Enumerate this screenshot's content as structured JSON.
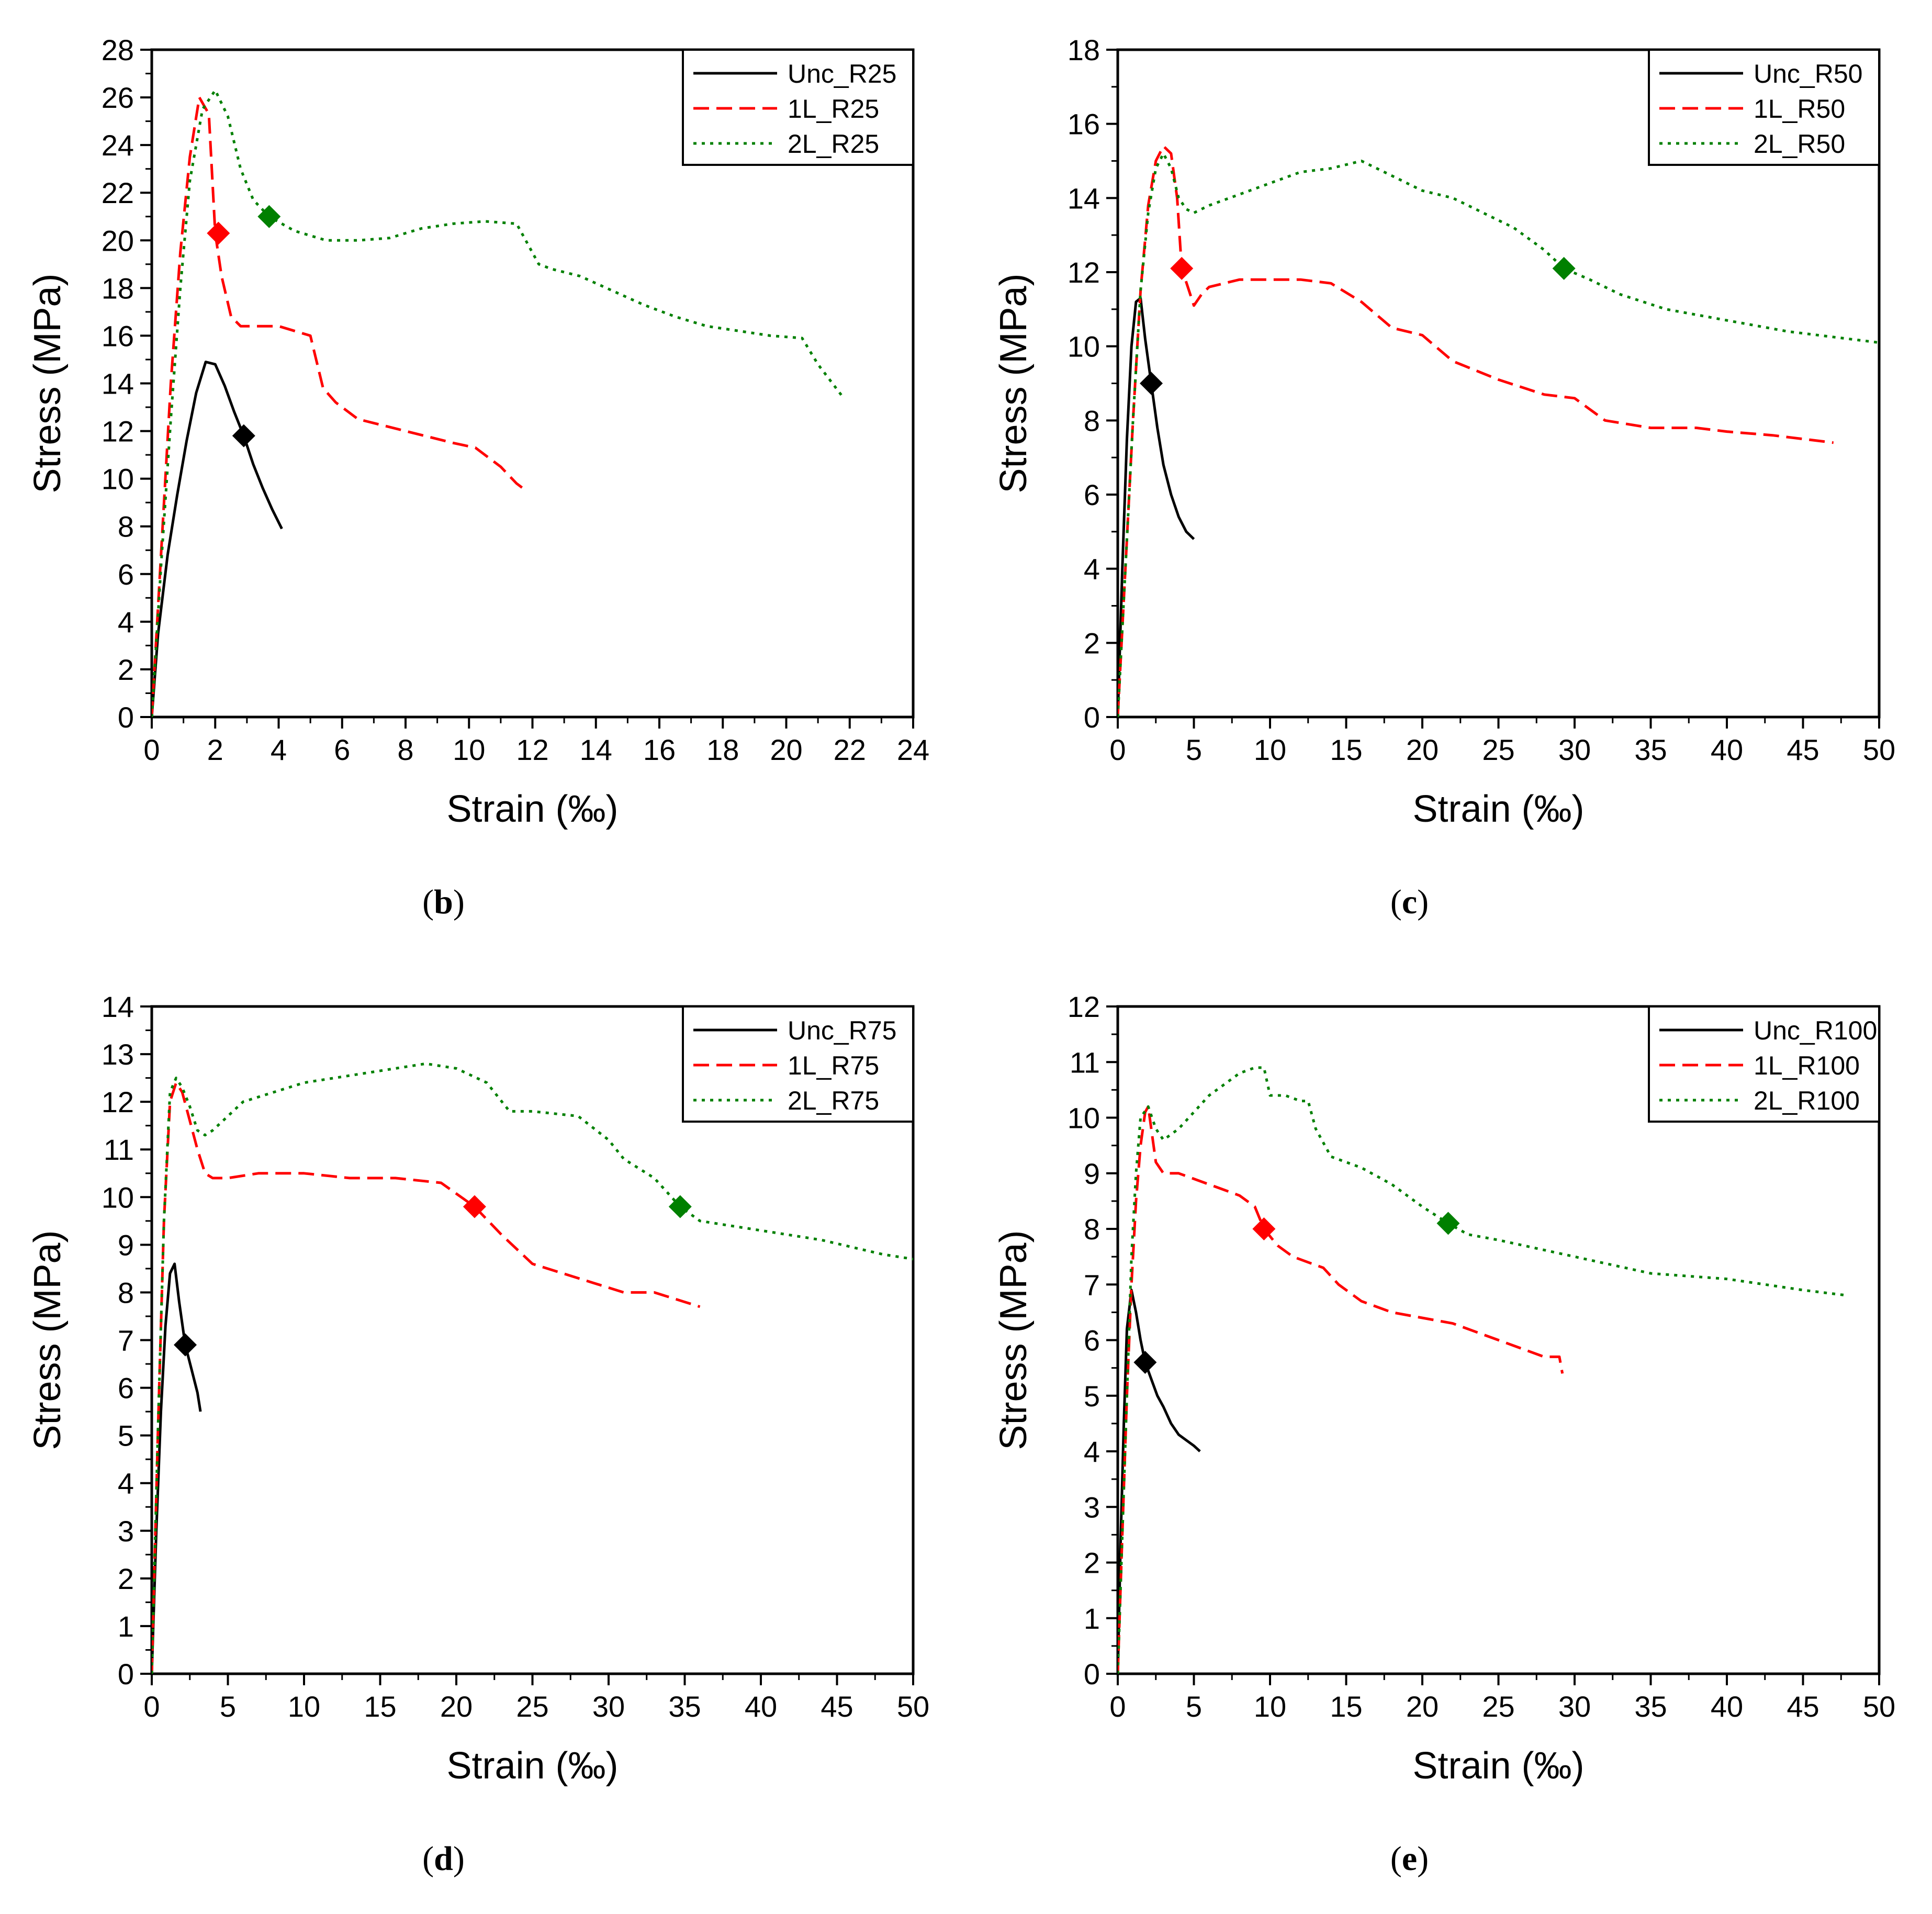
{
  "colors": {
    "unc": "#000000",
    "one_layer": "#ff0000",
    "two_layer": "#008000",
    "axis": "#000000"
  },
  "chart_data": [
    {
      "panel": "b",
      "type": "line",
      "caption": {
        "open": "(",
        "letter": "b",
        "close": ")"
      },
      "xlabel": "Strain (‰)",
      "ylabel": "Stress (MPa)",
      "xlim": [
        0,
        24
      ],
      "ylim": [
        0,
        28
      ],
      "xstep": 2,
      "ystep": 2,
      "grid": false,
      "legend": "top-right",
      "xticks": [
        "0",
        "2",
        "4",
        "6",
        "8",
        "10",
        "12",
        "14",
        "16",
        "18",
        "20",
        "22",
        "24"
      ],
      "yticks": [
        "0",
        "2",
        "4",
        "6",
        "8",
        "10",
        "12",
        "14",
        "16",
        "18",
        "20",
        "22",
        "24",
        "26",
        "28"
      ],
      "series": [
        {
          "name": "Unc_R25",
          "style": "solid",
          "color": "#000000",
          "marker": [
            2.9,
            11.8
          ],
          "x": [
            0,
            0.2,
            0.5,
            0.8,
            1.1,
            1.4,
            1.7,
            2.0,
            2.3,
            2.6,
            2.9,
            3.2,
            3.5,
            3.8,
            4.1
          ],
          "y": [
            0,
            3.5,
            6.8,
            9.3,
            11.6,
            13.6,
            14.9,
            14.8,
            13.9,
            12.8,
            11.8,
            10.6,
            9.6,
            8.7,
            7.9
          ]
        },
        {
          "name": "1L_R25",
          "style": "dashed",
          "color": "#ff0000",
          "marker": [
            2.1,
            20.3
          ],
          "x": [
            0,
            0.3,
            0.6,
            0.9,
            1.2,
            1.5,
            1.8,
            2.0,
            2.2,
            2.5,
            2.8,
            3.2,
            4.0,
            5.0,
            5.4,
            5.8,
            6.5,
            8.0,
            9.5,
            10.2,
            11.0,
            11.5,
            11.8
          ],
          "y": [
            0,
            7.0,
            14.0,
            19.5,
            23.5,
            26.0,
            25.3,
            20.3,
            18.5,
            16.8,
            16.4,
            16.4,
            16.4,
            16.0,
            13.8,
            13.2,
            12.5,
            12.0,
            11.5,
            11.3,
            10.5,
            9.8,
            9.5
          ]
        },
        {
          "name": "2L_R25",
          "style": "dotted",
          "color": "#008000",
          "marker": [
            3.7,
            21.0
          ],
          "x": [
            0,
            0.3,
            0.6,
            0.9,
            1.2,
            1.6,
            2.0,
            2.4,
            2.8,
            3.2,
            3.7,
            4.5,
            5.5,
            6.5,
            7.5,
            8.5,
            9.5,
            10.5,
            11.5,
            12.2,
            12.6,
            13.5,
            14.5,
            15.5,
            16.5,
            17.5,
            18.5,
            19.5,
            20.5,
            21.0,
            21.8
          ],
          "y": [
            0,
            6.5,
            12.5,
            18.0,
            22.5,
            25.5,
            26.3,
            25.2,
            23.0,
            21.7,
            21.0,
            20.4,
            20.0,
            20.0,
            20.1,
            20.5,
            20.7,
            20.8,
            20.7,
            19.0,
            18.8,
            18.5,
            17.9,
            17.3,
            16.8,
            16.4,
            16.2,
            16.0,
            15.9,
            14.8,
            13.4
          ]
        }
      ]
    },
    {
      "panel": "c",
      "type": "line",
      "caption": {
        "open": "(",
        "letter": "c",
        "close": ")"
      },
      "xlabel": "Strain (‰)",
      "ylabel": "Stress (MPa)",
      "xlim": [
        0,
        50
      ],
      "ylim": [
        0,
        18
      ],
      "xstep": 5,
      "ystep": 2,
      "grid": false,
      "legend": "top-right",
      "xticks": [
        "0",
        "5",
        "10",
        "15",
        "20",
        "25",
        "30",
        "35",
        "40",
        "45",
        "50"
      ],
      "yticks": [
        "0",
        "2",
        "4",
        "6",
        "8",
        "10",
        "12",
        "14",
        "16",
        "18"
      ],
      "series": [
        {
          "name": "Unc_R50",
          "style": "solid",
          "color": "#000000",
          "marker": [
            2.2,
            9.0
          ],
          "x": [
            0,
            0.3,
            0.6,
            0.9,
            1.2,
            1.5,
            1.8,
            2.2,
            2.6,
            3.0,
            3.5,
            4.0,
            4.5,
            5.0
          ],
          "y": [
            0,
            4.0,
            7.5,
            10.0,
            11.2,
            11.3,
            10.2,
            9.0,
            7.8,
            6.8,
            6.0,
            5.4,
            5.0,
            4.8
          ]
        },
        {
          "name": "1L_R50",
          "style": "dashed",
          "color": "#ff0000",
          "marker": [
            4.2,
            12.1
          ],
          "x": [
            0,
            0.5,
            1.0,
            1.5,
            2.0,
            2.5,
            3.0,
            3.5,
            3.9,
            4.2,
            4.6,
            5.0,
            5.5,
            6.0,
            8.0,
            10.0,
            12.0,
            14.0,
            16.0,
            18.0,
            20.0,
            22.0,
            25.0,
            28.0,
            30.0,
            32.0,
            35.0,
            38.0,
            40.0,
            43.0,
            47.0
          ],
          "y": [
            0,
            4.0,
            8.0,
            11.5,
            13.8,
            15.0,
            15.4,
            15.2,
            14.0,
            12.1,
            11.6,
            11.1,
            11.4,
            11.6,
            11.8,
            11.8,
            11.8,
            11.7,
            11.2,
            10.5,
            10.3,
            9.6,
            9.1,
            8.7,
            8.6,
            8.0,
            7.8,
            7.8,
            7.7,
            7.6,
            7.4
          ]
        },
        {
          "name": "2L_R50",
          "style": "dotted",
          "color": "#008000",
          "marker": [
            29.3,
            12.1
          ],
          "x": [
            0,
            0.5,
            1.0,
            1.5,
            2.0,
            2.5,
            3.0,
            3.5,
            4.0,
            4.5,
            5.0,
            6.0,
            8.0,
            10.0,
            12.0,
            14.0,
            16.0,
            18.0,
            20.0,
            22.0,
            24.0,
            26.0,
            28.0,
            29.3,
            31.0,
            33.0,
            36.0,
            40.0,
            44.0,
            48.0,
            50.0
          ],
          "y": [
            0,
            4.0,
            8.0,
            11.5,
            13.6,
            14.8,
            15.2,
            14.8,
            14.0,
            13.7,
            13.6,
            13.8,
            14.1,
            14.4,
            14.7,
            14.8,
            15.0,
            14.6,
            14.2,
            14.0,
            13.6,
            13.2,
            12.6,
            12.1,
            11.8,
            11.4,
            11.0,
            10.7,
            10.4,
            10.2,
            10.1
          ]
        }
      ]
    },
    {
      "panel": "d",
      "type": "line",
      "caption": {
        "open": "(",
        "letter": "d",
        "close": ")"
      },
      "xlabel": "Strain (‰)",
      "ylabel": "Stress (MPa)",
      "xlim": [
        0,
        50
      ],
      "ylim": [
        0,
        14
      ],
      "xstep": 5,
      "ystep": 1,
      "grid": false,
      "legend": "top-right",
      "xticks": [
        "0",
        "5",
        "10",
        "15",
        "20",
        "25",
        "30",
        "35",
        "40",
        "45",
        "50"
      ],
      "yticks": [
        "0",
        "1",
        "2",
        "3",
        "4",
        "5",
        "6",
        "7",
        "8",
        "9",
        "10",
        "11",
        "12",
        "13",
        "14"
      ],
      "series": [
        {
          "name": "Unc_R75",
          "style": "solid",
          "color": "#000000",
          "marker": [
            2.2,
            6.9
          ],
          "x": [
            0,
            0.3,
            0.6,
            0.9,
            1.2,
            1.5,
            1.8,
            2.2,
            2.6,
            3.0,
            3.2
          ],
          "y": [
            0,
            3.0,
            5.5,
            7.3,
            8.4,
            8.6,
            7.8,
            6.9,
            6.4,
            5.9,
            5.5
          ]
        },
        {
          "name": "1L_R75",
          "style": "dashed",
          "color": "#ff0000",
          "marker": [
            21.2,
            9.8
          ],
          "x": [
            0,
            0.4,
            0.8,
            1.2,
            1.6,
            2.0,
            2.5,
            3.0,
            3.5,
            4.0,
            5.0,
            7.0,
            10.0,
            13.0,
            16.0,
            19.0,
            21.2,
            23.0,
            25.0,
            27.0,
            29.0,
            31.0,
            33.0,
            35.0,
            36.0
          ],
          "y": [
            0,
            5.0,
            9.5,
            12.0,
            12.4,
            12.2,
            11.6,
            11.0,
            10.5,
            10.4,
            10.4,
            10.5,
            10.5,
            10.4,
            10.4,
            10.3,
            9.8,
            9.2,
            8.6,
            8.4,
            8.2,
            8.0,
            8.0,
            7.8,
            7.7
          ]
        },
        {
          "name": "2L_R75",
          "style": "dotted",
          "color": "#008000",
          "marker": [
            34.7,
            9.8
          ],
          "x": [
            0,
            0.4,
            0.8,
            1.2,
            1.6,
            2.0,
            2.5,
            3.0,
            3.5,
            4.0,
            5.0,
            6.0,
            8.0,
            10.0,
            12.0,
            14.0,
            16.0,
            18.0,
            20.0,
            22.0,
            23.5,
            25.0,
            28.0,
            30.0,
            31.0,
            33.0,
            34.7,
            36.0,
            40.0,
            44.0,
            48.0,
            50.0
          ],
          "y": [
            0,
            5.0,
            9.5,
            12.2,
            12.5,
            12.3,
            11.9,
            11.4,
            11.3,
            11.4,
            11.7,
            12.0,
            12.2,
            12.4,
            12.5,
            12.6,
            12.7,
            12.8,
            12.7,
            12.4,
            11.8,
            11.8,
            11.7,
            11.2,
            10.8,
            10.4,
            9.8,
            9.5,
            9.3,
            9.1,
            8.8,
            8.7
          ]
        }
      ]
    },
    {
      "panel": "e",
      "type": "line",
      "caption": {
        "open": "(",
        "letter": "e",
        "close": ")"
      },
      "xlabel": "Strain (‰)",
      "ylabel": "Stress (MPa)",
      "xlim": [
        0,
        50
      ],
      "ylim": [
        0,
        12
      ],
      "xstep": 5,
      "ystep": 1,
      "grid": false,
      "legend": "top-right",
      "xticks": [
        "0",
        "5",
        "10",
        "15",
        "20",
        "25",
        "30",
        "35",
        "40",
        "45",
        "50"
      ],
      "yticks": [
        "0",
        "1",
        "2",
        "3",
        "4",
        "5",
        "6",
        "7",
        "8",
        "9",
        "10",
        "11",
        "12"
      ],
      "series": [
        {
          "name": "Unc_R100",
          "style": "solid",
          "color": "#000000",
          "marker": [
            1.8,
            5.6
          ],
          "x": [
            0,
            0.2,
            0.4,
            0.6,
            0.9,
            1.2,
            1.5,
            1.8,
            2.2,
            2.6,
            3.0,
            3.5,
            4.0,
            4.5,
            5.0,
            5.4
          ],
          "y": [
            0,
            2.5,
            4.5,
            6.2,
            6.9,
            6.5,
            6.0,
            5.6,
            5.3,
            5.0,
            4.8,
            4.5,
            4.3,
            4.2,
            4.1,
            4.0
          ]
        },
        {
          "name": "1L_R100",
          "style": "dashed",
          "color": "#ff0000",
          "marker": [
            9.6,
            8.0
          ],
          "x": [
            0,
            0.3,
            0.6,
            0.9,
            1.2,
            1.5,
            1.8,
            2.0,
            2.5,
            3.0,
            4.0,
            5.0,
            6.0,
            7.0,
            8.0,
            9.0,
            9.6,
            10.5,
            11.5,
            12.5,
            13.5,
            14.5,
            16.0,
            18.0,
            20.0,
            22.0,
            24.0,
            26.0,
            28.0,
            29.0,
            29.2
          ],
          "y": [
            0,
            2.5,
            5.0,
            7.0,
            8.5,
            9.5,
            10.1,
            10.2,
            9.2,
            9.0,
            9.0,
            8.9,
            8.8,
            8.7,
            8.6,
            8.4,
            8.0,
            7.7,
            7.5,
            7.4,
            7.3,
            7.0,
            6.7,
            6.5,
            6.4,
            6.3,
            6.1,
            5.9,
            5.7,
            5.7,
            5.4
          ]
        },
        {
          "name": "2L_R100",
          "style": "dotted",
          "color": "#008000",
          "marker": [
            21.7,
            8.1
          ],
          "x": [
            0,
            0.3,
            0.6,
            0.9,
            1.2,
            1.5,
            2.0,
            2.5,
            3.0,
            3.5,
            4.0,
            5.0,
            6.0,
            7.0,
            8.0,
            9.0,
            9.6,
            10.0,
            11.0,
            12.0,
            12.5,
            13.0,
            14.0,
            16.0,
            18.0,
            20.0,
            21.7,
            23.0,
            25.0,
            30.0,
            35.0,
            40.0,
            45.0,
            48.0
          ],
          "y": [
            0,
            2.5,
            5.0,
            7.5,
            9.0,
            10.0,
            10.2,
            9.8,
            9.6,
            9.7,
            9.8,
            10.1,
            10.4,
            10.6,
            10.8,
            10.9,
            10.9,
            10.4,
            10.4,
            10.3,
            10.3,
            9.8,
            9.3,
            9.1,
            8.8,
            8.4,
            8.1,
            7.9,
            7.8,
            7.5,
            7.2,
            7.1,
            6.9,
            6.8
          ]
        }
      ]
    }
  ]
}
